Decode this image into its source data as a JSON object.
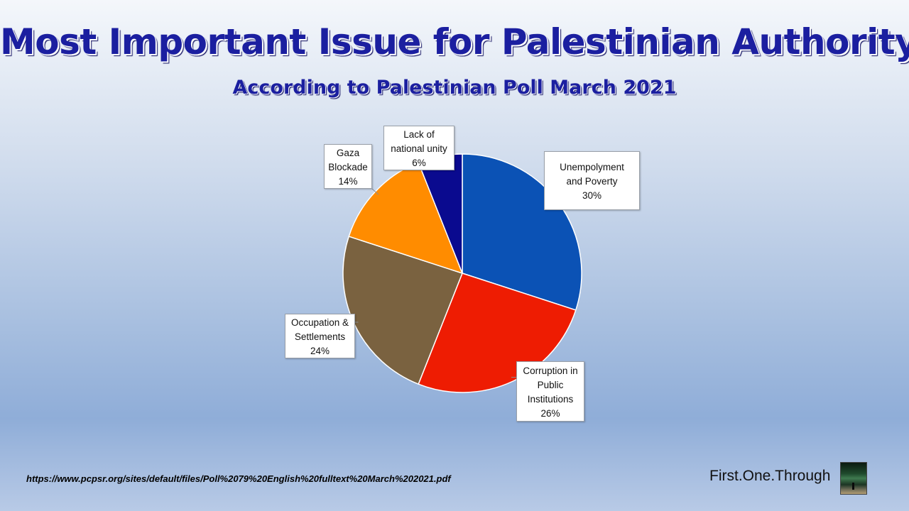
{
  "title": "Most Important Issue for Palestinian Authority",
  "subtitle": "According to Palestinian Poll March 2021",
  "source_url": "https://www.pcpsr.org/sites/default/files/Poll%2079%20English%20fulltext%20March%202021.pdf",
  "brand": {
    "name": "First.One.Through",
    "logo_icon": "beach-photo-icon"
  },
  "chart_data": {
    "type": "pie",
    "title": "Most Important Issue for Palestinian Authority",
    "subtitle": "According to Palestinian Poll March 2021",
    "unit": "%",
    "slices": [
      {
        "label": "Unempolyment and Poverty",
        "label_lines": [
          "Unempolyment",
          "and Poverty"
        ],
        "value": 30,
        "value_text": "30%",
        "color": "#0b52b5"
      },
      {
        "label": "Corruption in Public Institutions",
        "label_lines": [
          "Corruption  in",
          "Public",
          "Institutions"
        ],
        "value": 26,
        "value_text": "26%",
        "color": "#ee1c02"
      },
      {
        "label": "Occupation & Settlements",
        "label_lines": [
          "Occupation &",
          "Settlements"
        ],
        "value": 24,
        "value_text": "24%",
        "color": "#7a6240"
      },
      {
        "label": "Gaza Blockade",
        "label_lines": [
          "Gaza",
          "Blockade"
        ],
        "value": 14,
        "value_text": "14%",
        "color": "#ff8c00"
      },
      {
        "label": "Lack of national unity",
        "label_lines": [
          "Lack of",
          "national unity"
        ],
        "value": 6,
        "value_text": "6%",
        "color": "#0a0a8f"
      }
    ],
    "start": "12 o'clock",
    "direction": "clockwise",
    "legend": "none",
    "data_labels": "callout boxes"
  }
}
